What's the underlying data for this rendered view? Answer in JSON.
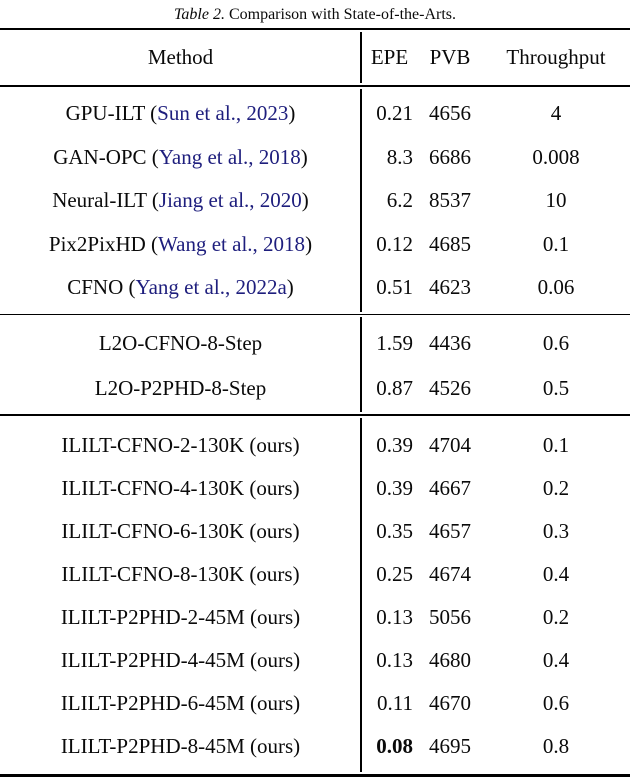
{
  "caption": {
    "tag": "Table 2.",
    "text": " Comparison with State-of-the-Arts."
  },
  "columns": {
    "method": "Method",
    "epe": "EPE",
    "pvb": "PVB",
    "throughput": "Throughput"
  },
  "colors": {
    "citation_blue": "#1e1e7d",
    "text_black": "#0a0a0a",
    "rule_black": "#000000"
  },
  "sections": [
    {
      "name": "prior-arts",
      "rows": [
        {
          "method_pre": "GPU-ILT (",
          "citation": "Sun et al., 2023",
          "method_post": ")",
          "epe": "0.21",
          "epe_bold": false,
          "pvb": "4656",
          "throughput": "4"
        },
        {
          "method_pre": "GAN-OPC (",
          "citation": "Yang et al., 2018",
          "method_post": ")",
          "epe": "8.3",
          "epe_bold": false,
          "pvb": "6686",
          "throughput": "0.008"
        },
        {
          "method_pre": "Neural-ILT (",
          "citation": "Jiang et al., 2020",
          "method_post": ")",
          "epe": "6.2",
          "epe_bold": false,
          "pvb": "8537",
          "throughput": "10"
        },
        {
          "method_pre": "Pix2PixHD (",
          "citation": "Wang et al., 2018",
          "method_post": ")",
          "epe": "0.12",
          "epe_bold": false,
          "pvb": "4685",
          "throughput": "0.1"
        },
        {
          "method_pre": "CFNO (",
          "citation": "Yang et al., 2022a",
          "method_post": ")",
          "epe": "0.51",
          "epe_bold": false,
          "pvb": "4623",
          "throughput": "0.06"
        }
      ]
    },
    {
      "name": "l2o-baselines",
      "rows": [
        {
          "method_pre": "L2O-CFNO-8-Step",
          "citation": "",
          "method_post": "",
          "epe": "1.59",
          "epe_bold": false,
          "pvb": "4436",
          "throughput": "0.6"
        },
        {
          "method_pre": "L2O-P2PHD-8-Step",
          "citation": "",
          "method_post": "",
          "epe": "0.87",
          "epe_bold": false,
          "pvb": "4526",
          "throughput": "0.5"
        }
      ]
    },
    {
      "name": "ours",
      "rows": [
        {
          "method_pre": "ILILT-CFNO-2-130K (ours)",
          "citation": "",
          "method_post": "",
          "epe": "0.39",
          "epe_bold": false,
          "pvb": "4704",
          "throughput": "0.1"
        },
        {
          "method_pre": "ILILT-CFNO-4-130K (ours)",
          "citation": "",
          "method_post": "",
          "epe": "0.39",
          "epe_bold": false,
          "pvb": "4667",
          "throughput": "0.2"
        },
        {
          "method_pre": "ILILT-CFNO-6-130K (ours)",
          "citation": "",
          "method_post": "",
          "epe": "0.35",
          "epe_bold": false,
          "pvb": "4657",
          "throughput": "0.3"
        },
        {
          "method_pre": "ILILT-CFNO-8-130K (ours)",
          "citation": "",
          "method_post": "",
          "epe": "0.25",
          "epe_bold": false,
          "pvb": "4674",
          "throughput": "0.4"
        },
        {
          "method_pre": "ILILT-P2PHD-2-45M (ours)",
          "citation": "",
          "method_post": "",
          "epe": "0.13",
          "epe_bold": false,
          "pvb": "5056",
          "throughput": "0.2"
        },
        {
          "method_pre": "ILILT-P2PHD-4-45M (ours)",
          "citation": "",
          "method_post": "",
          "epe": "0.13",
          "epe_bold": false,
          "pvb": "4680",
          "throughput": "0.4"
        },
        {
          "method_pre": "ILILT-P2PHD-6-45M (ours)",
          "citation": "",
          "method_post": "",
          "epe": "0.11",
          "epe_bold": false,
          "pvb": "4670",
          "throughput": "0.6"
        },
        {
          "method_pre": "ILILT-P2PHD-8-45M (ours)",
          "citation": "",
          "method_post": "",
          "epe": "0.08",
          "epe_bold": true,
          "pvb": "4695",
          "throughput": "0.8"
        }
      ]
    }
  ]
}
